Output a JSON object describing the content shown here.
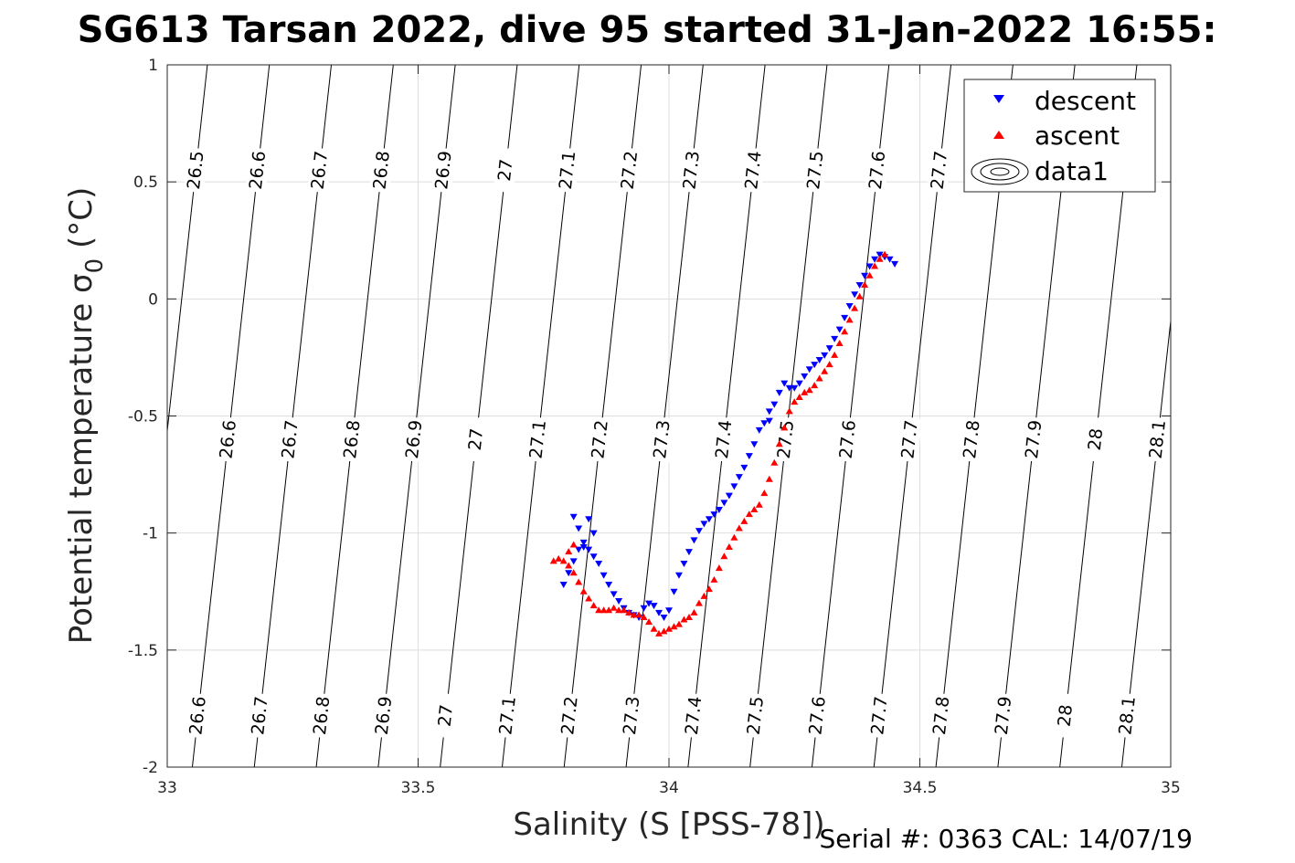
{
  "chart_data": {
    "type": "scatter",
    "title": "SG613 Tarsan 2022, dive 95 started 31-Jan-2022 16:55:",
    "xlabel": "Salinity (S [PSS-78])",
    "ylabel": "Potential temperature σ",
    "ylabel_sub": "0",
    "ylabel_unit": " (°C)",
    "xlim": [
      33,
      35
    ],
    "ylim": [
      -2,
      1
    ],
    "grid": true,
    "legend_position": "top-right",
    "x_ticks": [
      "33",
      "33.5",
      "34",
      "34.5",
      "35"
    ],
    "y_ticks": [
      "1",
      "0.5",
      "0",
      "-0.5",
      "-1",
      "-1.5",
      "-2"
    ],
    "series": [
      {
        "name": "descent",
        "color": "#0000ff",
        "marker": "triangle-down",
        "x": [
          34.45,
          34.44,
          34.43,
          34.42,
          34.41,
          34.4,
          34.39,
          34.38,
          34.37,
          34.36,
          34.35,
          34.34,
          34.33,
          34.32,
          34.31,
          34.3,
          34.29,
          34.28,
          34.27,
          34.26,
          34.25,
          34.24,
          34.23,
          34.22,
          34.21,
          34.2,
          34.2,
          34.19,
          34.18,
          34.17,
          34.16,
          34.15,
          34.14,
          34.13,
          34.12,
          34.11,
          34.1,
          34.09,
          34.08,
          34.07,
          34.06,
          34.05,
          34.04,
          34.03,
          34.02,
          34.01,
          34.0,
          33.99,
          33.98,
          33.97,
          33.96,
          33.95,
          33.94,
          33.93,
          33.92,
          33.91,
          33.9,
          33.89,
          33.88,
          33.87,
          33.86,
          33.85,
          33.84,
          33.83,
          33.82,
          33.81,
          33.8,
          33.79,
          33.82,
          33.84,
          33.85,
          33.83,
          33.81
        ],
        "y": [
          0.15,
          0.17,
          0.18,
          0.19,
          0.17,
          0.14,
          0.1,
          0.06,
          0.02,
          -0.03,
          -0.08,
          -0.13,
          -0.17,
          -0.21,
          -0.24,
          -0.26,
          -0.28,
          -0.3,
          -0.33,
          -0.36,
          -0.38,
          -0.38,
          -0.36,
          -0.4,
          -0.45,
          -0.48,
          -0.52,
          -0.53,
          -0.56,
          -0.62,
          -0.67,
          -0.72,
          -0.76,
          -0.8,
          -0.84,
          -0.87,
          -0.9,
          -0.92,
          -0.94,
          -0.96,
          -0.99,
          -1.03,
          -1.08,
          -1.13,
          -1.18,
          -1.25,
          -1.33,
          -1.36,
          -1.34,
          -1.31,
          -1.3,
          -1.32,
          -1.36,
          -1.35,
          -1.34,
          -1.32,
          -1.29,
          -1.26,
          -1.22,
          -1.18,
          -1.13,
          -1.1,
          -1.07,
          -1.04,
          -1.07,
          -1.12,
          -1.17,
          -1.22,
          -0.98,
          -0.94,
          -1.0,
          -1.06,
          -0.93
        ]
      },
      {
        "name": "ascent",
        "color": "#ff0000",
        "marker": "triangle-up",
        "x": [
          34.43,
          34.42,
          34.41,
          34.4,
          34.39,
          34.38,
          34.37,
          34.36,
          34.35,
          34.34,
          34.33,
          34.32,
          34.31,
          34.3,
          34.29,
          34.28,
          34.27,
          34.26,
          34.25,
          34.24,
          34.23,
          34.22,
          34.21,
          34.2,
          34.19,
          34.18,
          34.17,
          34.16,
          34.15,
          34.14,
          34.13,
          34.12,
          34.11,
          34.1,
          34.09,
          34.08,
          34.07,
          34.06,
          34.05,
          34.04,
          34.03,
          34.02,
          34.01,
          34.0,
          33.99,
          33.98,
          33.97,
          33.96,
          33.95,
          33.94,
          33.93,
          33.92,
          33.91,
          33.9,
          33.89,
          33.88,
          33.87,
          33.86,
          33.85,
          33.84,
          33.83,
          33.82,
          33.81,
          33.8,
          33.79,
          33.78,
          33.77,
          33.8,
          33.81
        ],
        "y": [
          0.19,
          0.17,
          0.14,
          0.1,
          0.06,
          0.01,
          -0.04,
          -0.09,
          -0.14,
          -0.19,
          -0.24,
          -0.28,
          -0.31,
          -0.34,
          -0.37,
          -0.39,
          -0.4,
          -0.42,
          -0.44,
          -0.48,
          -0.55,
          -0.62,
          -0.7,
          -0.77,
          -0.83,
          -0.88,
          -0.9,
          -0.92,
          -0.95,
          -0.98,
          -1.02,
          -1.06,
          -1.1,
          -1.15,
          -1.2,
          -1.24,
          -1.27,
          -1.3,
          -1.34,
          -1.36,
          -1.37,
          -1.39,
          -1.4,
          -1.41,
          -1.42,
          -1.43,
          -1.41,
          -1.38,
          -1.36,
          -1.35,
          -1.35,
          -1.34,
          -1.33,
          -1.33,
          -1.32,
          -1.33,
          -1.33,
          -1.33,
          -1.31,
          -1.28,
          -1.25,
          -1.21,
          -1.17,
          -1.14,
          -1.12,
          -1.11,
          -1.12,
          -1.08,
          -1.05
        ]
      },
      {
        "name": "data1",
        "color": "#000000",
        "marker": "contour-ellipse"
      }
    ],
    "contours": {
      "type": "density-isopycnals",
      "top_labels": [
        "26.5",
        "26.6",
        "26.7",
        "26.8",
        "26.9",
        "27",
        "27.1",
        "27.2",
        "27.3",
        "27.4",
        "27.5",
        "27.6",
        "27.7"
      ],
      "mid_labels": [
        "26.6",
        "26.7",
        "26.8",
        "26.9",
        "27",
        "27.1",
        "27.2",
        "27.3",
        "27.4",
        "27.5",
        "27.6",
        "27.7",
        "27.8",
        "27.9",
        "28",
        "28.1"
      ],
      "bottom_labels": [
        "26.6",
        "26.7",
        "26.8",
        "26.9",
        "27",
        "27.1",
        "27.2",
        "27.3",
        "27.4",
        "27.5",
        "27.6",
        "27.7",
        "27.8",
        "27.9",
        "28",
        "28.1"
      ]
    }
  },
  "footer": {
    "serial": "Serial #: 0363  CAL: 14/07/19"
  }
}
